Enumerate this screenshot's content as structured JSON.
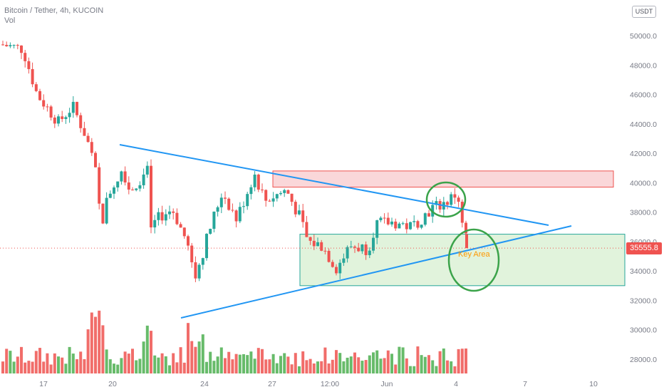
{
  "header": {
    "title": "Bitcoin / Tether, 4h, KUCOIN",
    "volume_label": "Vol"
  },
  "currency_badge": "USDT",
  "last_price": "35555.8",
  "annotation": "Key Area",
  "colors": {
    "up": "#26a69a",
    "down": "#ef5350",
    "volume_up": "#4caf50",
    "volume_down": "#ef5350",
    "trendline": "#2196f3",
    "resistance_zone": "#f8cacc",
    "support_zone": "#d9f0d3",
    "circle": "#3ba34a",
    "annotation": "#ff9800"
  },
  "chart_data": {
    "type": "candlestick",
    "y_axis": {
      "ticks": [
        "50000.0",
        "48000.0",
        "46000.0",
        "44000.0",
        "42000.0",
        "40000.0",
        "38000.0",
        "36000.0",
        "34000.0",
        "32000.0",
        "30000.0",
        "28000.0"
      ],
      "range": [
        27000,
        51800
      ]
    },
    "x_axis": {
      "ticks": [
        "17",
        "20",
        "24",
        "27",
        "12:00",
        "Jun",
        "4",
        "7",
        "10"
      ]
    },
    "resistance_zone": [
      39700,
      40800
    ],
    "support_zone": [
      33000,
      36500
    ],
    "descending_trendline": [
      [
        0,
        42600
      ],
      [
        1,
        37000
      ]
    ],
    "ascending_trendline": [
      [
        0,
        30800
      ],
      [
        1,
        36900
      ]
    ],
    "last_price": 35555.8
  }
}
